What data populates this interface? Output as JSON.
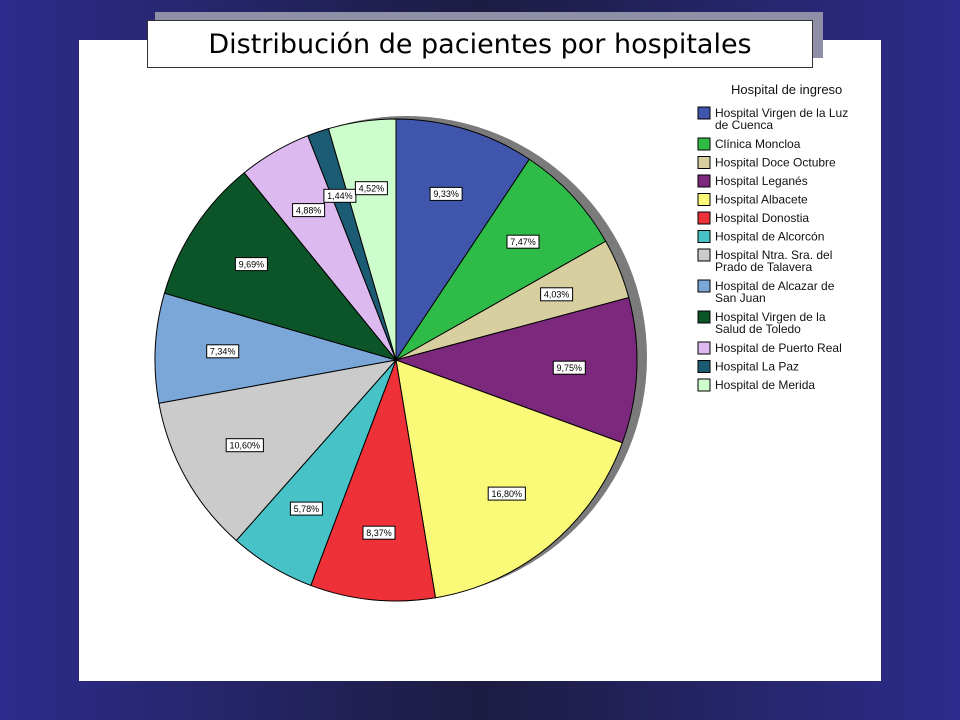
{
  "title": "Distribución de pacientes por hospitales",
  "chart_data": {
    "type": "pie",
    "legend_title": "Hospital de ingreso",
    "legend_position": "right",
    "start_angle_deg": 0,
    "direction": "clockwise",
    "slices": [
      {
        "name": [
          "Hospital Virgen de la Luz",
          "de Cuenca"
        ],
        "value": 9.33,
        "label": "9,33%",
        "color": "#3f56ac"
      },
      {
        "name": [
          "Clínica Moncloa"
        ],
        "value": 7.47,
        "label": "7,47%",
        "color": "#2fbb48"
      },
      {
        "name": [
          "Hospital Doce Octubre"
        ],
        "value": 4.03,
        "label": "4,03%",
        "color": "#d7cfa0"
      },
      {
        "name": [
          "Hospital Leganés"
        ],
        "value": 9.75,
        "label": "9,75%",
        "color": "#7b287d"
      },
      {
        "name": [
          "Hospital Albacete"
        ],
        "value": 16.8,
        "label": "16,80%",
        "color": "#fafa78"
      },
      {
        "name": [
          "Hospital Donostia"
        ],
        "value": 8.37,
        "label": "8,37%",
        "color": "#ee3039"
      },
      {
        "name": [
          "Hospital de Alcorcón"
        ],
        "value": 5.78,
        "label": "5,78%",
        "color": "#47c2c7"
      },
      {
        "name": [
          "Hospital Ntra. Sra. del",
          "Prado de Talavera"
        ],
        "value": 10.6,
        "label": "10,60%",
        "color": "#cbcbcb"
      },
      {
        "name": [
          "Hospital de Alcazar de",
          "San Juan"
        ],
        "value": 7.34,
        "label": "7,34%",
        "color": "#7aa6d8"
      },
      {
        "name": [
          "Hospital Virgen de la",
          "Salud de Toledo"
        ],
        "value": 9.69,
        "label": "9,69%",
        "color": "#0c5528"
      },
      {
        "name": [
          "Hospital de Puerto Real"
        ],
        "value": 4.88,
        "label": "4,88%",
        "color": "#dcbaf0"
      },
      {
        "name": [
          "Hospital La Paz"
        ],
        "value": 1.44,
        "label": "1,44%",
        "color": "#1b5c74"
      },
      {
        "name": [
          "Hospital de Merida"
        ],
        "value": 4.52,
        "label": "4,52%",
        "color": "#cdfdcd"
      }
    ]
  }
}
